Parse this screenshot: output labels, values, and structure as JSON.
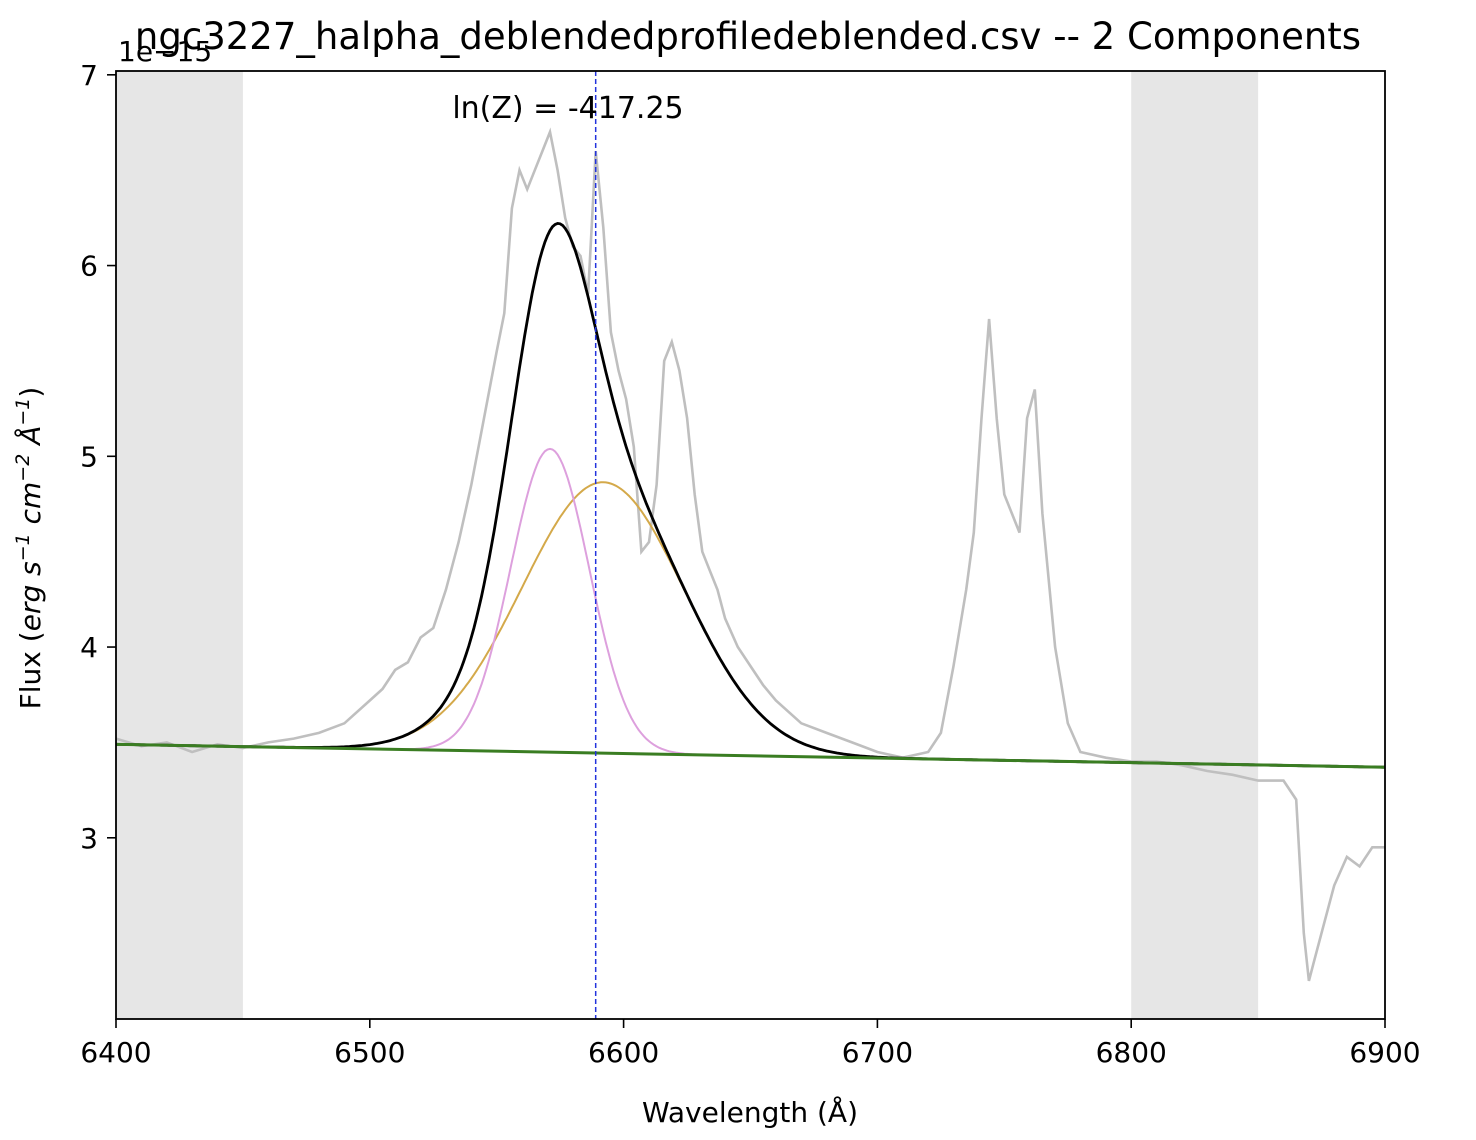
{
  "chart_data": {
    "type": "line",
    "title": "ngc3227_halpha_deblendedprofiledeblended.csv -- 2 Components",
    "xlabel": "Wavelength (Å)",
    "ylabel_prefix": "Flux (",
    "ylabel_erg": "erg s",
    "ylabel_sup1": "−1",
    "ylabel_cm": " cm",
    "ylabel_sup2": "−2",
    "ylabel_A": " Å",
    "ylabel_sup3": "−1",
    "ylabel_suffix": ")",
    "ylabel": "Flux (erg s⁻¹ cm⁻² Å⁻¹)",
    "y_offset_label": "1e−15",
    "annotation": "ln(Z) = -417.25",
    "xlim": [
      6400,
      6900
    ],
    "ylim": [
      2.05,
      7.02
    ],
    "x_ticks": [
      "6400",
      "6500",
      "6600",
      "6700",
      "6800",
      "6900"
    ],
    "y_ticks": [
      "3",
      "4",
      "5",
      "6",
      "7"
    ],
    "shaded_regions": [
      [
        6400,
        6450
      ],
      [
        6800,
        6850
      ]
    ],
    "vertical_line_x": 6589,
    "colors": {
      "data": "#bfbfbf",
      "total": "#000000",
      "narrow": "#dda0dd",
      "broad": "#d4a94a",
      "continuum": "#3a7d22",
      "vline": "#2233dd",
      "shade": "#e6e6e6"
    },
    "continuum": {
      "start": [
        6400,
        3.49
      ],
      "end": [
        6900,
        3.37
      ]
    },
    "components": [
      {
        "name": "narrow",
        "center": 6571,
        "sigma": 15.5,
        "amplitude": 1.59
      },
      {
        "name": "broad",
        "center": 6592,
        "sigma": 32,
        "amplitude": 1.42
      }
    ],
    "series": [
      {
        "name": "observed spectrum",
        "x": [
          6400,
          6410,
          6420,
          6430,
          6440,
          6450,
          6460,
          6470,
          6480,
          6490,
          6500,
          6505,
          6510,
          6515,
          6520,
          6525,
          6530,
          6535,
          6540,
          6545,
          6550,
          6553,
          6556,
          6559,
          6562,
          6565,
          6568,
          6571,
          6574,
          6577,
          6580,
          6583,
          6586,
          6589,
          6592,
          6595,
          6598,
          6601,
          6604,
          6607,
          6610,
          6613,
          6616,
          6619,
          6622,
          6625,
          6628,
          6631,
          6634,
          6637,
          6640,
          6645,
          6650,
          6655,
          6660,
          6670,
          6680,
          6690,
          6700,
          6710,
          6720,
          6725,
          6730,
          6735,
          6738,
          6741,
          6744,
          6747,
          6750,
          6753,
          6756,
          6759,
          6762,
          6765,
          6770,
          6775,
          6780,
          6790,
          6800,
          6810,
          6820,
          6830,
          6840,
          6850,
          6860,
          6865,
          6868,
          6870,
          6872,
          6875,
          6880,
          6885,
          6890,
          6895,
          6900
        ],
        "y": [
          3.52,
          3.48,
          3.5,
          3.45,
          3.49,
          3.47,
          3.5,
          3.52,
          3.55,
          3.6,
          3.72,
          3.78,
          3.88,
          3.92,
          4.05,
          4.1,
          4.3,
          4.55,
          4.85,
          5.2,
          5.55,
          5.75,
          6.3,
          6.5,
          6.4,
          6.5,
          6.6,
          6.7,
          6.5,
          6.25,
          6.1,
          6.05,
          5.85,
          6.6,
          6.2,
          5.65,
          5.45,
          5.3,
          5.05,
          4.5,
          4.55,
          4.85,
          5.5,
          5.6,
          5.45,
          5.2,
          4.8,
          4.5,
          4.4,
          4.3,
          4.15,
          4.0,
          3.9,
          3.8,
          3.72,
          3.6,
          3.55,
          3.5,
          3.45,
          3.42,
          3.45,
          3.55,
          3.9,
          4.3,
          4.6,
          5.2,
          5.72,
          5.2,
          4.8,
          4.7,
          4.6,
          5.2,
          5.35,
          4.7,
          4.0,
          3.6,
          3.45,
          3.42,
          3.4,
          3.4,
          3.38,
          3.35,
          3.33,
          3.3,
          3.3,
          3.2,
          2.5,
          2.25,
          2.35,
          2.5,
          2.75,
          2.9,
          2.85,
          2.95,
          2.95
        ]
      }
    ]
  }
}
